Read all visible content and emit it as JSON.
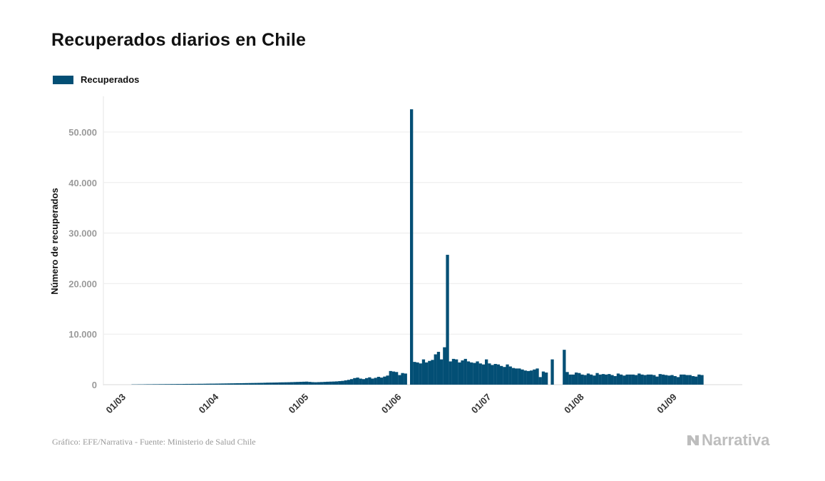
{
  "title": "Recuperados diarios en Chile",
  "legend": {
    "label": "Recuperados",
    "color": "#034f75"
  },
  "source": "Gráfico: EFE/Narrativa - Fuente: Ministerio de Salud Chile",
  "brand": "Narrativa",
  "chart_data": {
    "type": "bar",
    "ylabel": "Número de recuperados",
    "ylim": [
      0,
      55000
    ],
    "yticks": [
      0,
      10000,
      20000,
      30000,
      40000,
      50000
    ],
    "ytick_labels": [
      "0",
      "10.000",
      "20.000",
      "30.000",
      "40.000",
      "50.000"
    ],
    "x_start": "2020-03-01",
    "x_end": "2020-09-14",
    "xtick_dates": [
      "2020-03-01",
      "2020-04-01",
      "2020-05-01",
      "2020-06-01",
      "2020-07-01",
      "2020-08-01",
      "2020-09-01"
    ],
    "xtick_labels": [
      "01/03",
      "01/04",
      "01/05",
      "01/06",
      "01/07",
      "01/08",
      "01/09"
    ],
    "grid": true,
    "legend_position": "top-left",
    "series": [
      {
        "name": "Recuperados",
        "color": "#034f75",
        "data": [
          [
            "2020-03-08",
            50
          ],
          [
            "2020-03-09",
            50
          ],
          [
            "2020-03-10",
            60
          ],
          [
            "2020-03-11",
            60
          ],
          [
            "2020-03-12",
            70
          ],
          [
            "2020-03-13",
            80
          ],
          [
            "2020-03-14",
            80
          ],
          [
            "2020-03-15",
            90
          ],
          [
            "2020-03-16",
            90
          ],
          [
            "2020-03-17",
            100
          ],
          [
            "2020-03-18",
            100
          ],
          [
            "2020-03-19",
            110
          ],
          [
            "2020-03-20",
            110
          ],
          [
            "2020-03-21",
            120
          ],
          [
            "2020-03-22",
            120
          ],
          [
            "2020-03-23",
            130
          ],
          [
            "2020-03-24",
            130
          ],
          [
            "2020-03-25",
            140
          ],
          [
            "2020-03-26",
            150
          ],
          [
            "2020-03-27",
            150
          ],
          [
            "2020-03-28",
            160
          ],
          [
            "2020-03-29",
            160
          ],
          [
            "2020-03-30",
            170
          ],
          [
            "2020-03-31",
            170
          ],
          [
            "2020-04-01",
            180
          ],
          [
            "2020-04-02",
            190
          ],
          [
            "2020-04-03",
            200
          ],
          [
            "2020-04-04",
            200
          ],
          [
            "2020-04-05",
            210
          ],
          [
            "2020-04-06",
            220
          ],
          [
            "2020-04-07",
            230
          ],
          [
            "2020-04-08",
            240
          ],
          [
            "2020-04-09",
            250
          ],
          [
            "2020-04-10",
            260
          ],
          [
            "2020-04-11",
            270
          ],
          [
            "2020-04-12",
            280
          ],
          [
            "2020-04-13",
            290
          ],
          [
            "2020-04-14",
            300
          ],
          [
            "2020-04-15",
            310
          ],
          [
            "2020-04-16",
            320
          ],
          [
            "2020-04-17",
            330
          ],
          [
            "2020-04-18",
            340
          ],
          [
            "2020-04-19",
            350
          ],
          [
            "2020-04-20",
            360
          ],
          [
            "2020-04-21",
            380
          ],
          [
            "2020-04-22",
            400
          ],
          [
            "2020-04-23",
            410
          ],
          [
            "2020-04-24",
            420
          ],
          [
            "2020-04-25",
            430
          ],
          [
            "2020-04-26",
            450
          ],
          [
            "2020-04-27",
            460
          ],
          [
            "2020-04-28",
            470
          ],
          [
            "2020-04-29",
            480
          ],
          [
            "2020-04-30",
            500
          ],
          [
            "2020-05-01",
            520
          ],
          [
            "2020-05-02",
            540
          ],
          [
            "2020-05-03",
            560
          ],
          [
            "2020-05-04",
            580
          ],
          [
            "2020-05-05",
            600
          ],
          [
            "2020-05-06",
            550
          ],
          [
            "2020-05-07",
            500
          ],
          [
            "2020-05-08",
            480
          ],
          [
            "2020-05-09",
            500
          ],
          [
            "2020-05-10",
            520
          ],
          [
            "2020-05-11",
            550
          ],
          [
            "2020-05-12",
            580
          ],
          [
            "2020-05-13",
            600
          ],
          [
            "2020-05-14",
            620
          ],
          [
            "2020-05-15",
            650
          ],
          [
            "2020-05-16",
            700
          ],
          [
            "2020-05-17",
            750
          ],
          [
            "2020-05-18",
            850
          ],
          [
            "2020-05-19",
            950
          ],
          [
            "2020-05-20",
            1100
          ],
          [
            "2020-05-21",
            1300
          ],
          [
            "2020-05-22",
            1400
          ],
          [
            "2020-05-23",
            1200
          ],
          [
            "2020-05-24",
            1100
          ],
          [
            "2020-05-25",
            1300
          ],
          [
            "2020-05-26",
            1450
          ],
          [
            "2020-05-27",
            1200
          ],
          [
            "2020-05-28",
            1350
          ],
          [
            "2020-05-29",
            1550
          ],
          [
            "2020-05-30",
            1400
          ],
          [
            "2020-05-31",
            1600
          ],
          [
            "2020-06-01",
            1800
          ],
          [
            "2020-06-02",
            2700
          ],
          [
            "2020-06-03",
            2600
          ],
          [
            "2020-06-04",
            2500
          ],
          [
            "2020-06-05",
            1900
          ],
          [
            "2020-06-06",
            2300
          ],
          [
            "2020-06-07",
            2200
          ],
          [
            "2020-06-09",
            54500
          ],
          [
            "2020-06-10",
            4500
          ],
          [
            "2020-06-11",
            4400
          ],
          [
            "2020-06-12",
            4200
          ],
          [
            "2020-06-13",
            5000
          ],
          [
            "2020-06-14",
            4400
          ],
          [
            "2020-06-15",
            4700
          ],
          [
            "2020-06-16",
            4900
          ],
          [
            "2020-06-17",
            6000
          ],
          [
            "2020-06-18",
            6500
          ],
          [
            "2020-06-19",
            5000
          ],
          [
            "2020-06-20",
            7400
          ],
          [
            "2020-06-21",
            25700
          ],
          [
            "2020-06-22",
            4600
          ],
          [
            "2020-06-23",
            5100
          ],
          [
            "2020-06-24",
            5000
          ],
          [
            "2020-06-25",
            4400
          ],
          [
            "2020-06-26",
            4800
          ],
          [
            "2020-06-27",
            5100
          ],
          [
            "2020-06-28",
            4600
          ],
          [
            "2020-06-29",
            4400
          ],
          [
            "2020-06-30",
            4300
          ],
          [
            "2020-07-01",
            4600
          ],
          [
            "2020-07-02",
            4200
          ],
          [
            "2020-07-03",
            4000
          ],
          [
            "2020-07-04",
            5000
          ],
          [
            "2020-07-05",
            4200
          ],
          [
            "2020-07-06",
            3900
          ],
          [
            "2020-07-07",
            4100
          ],
          [
            "2020-07-08",
            4000
          ],
          [
            "2020-07-09",
            3700
          ],
          [
            "2020-07-10",
            3500
          ],
          [
            "2020-07-11",
            4000
          ],
          [
            "2020-07-12",
            3600
          ],
          [
            "2020-07-13",
            3300
          ],
          [
            "2020-07-14",
            3200
          ],
          [
            "2020-07-15",
            3200
          ],
          [
            "2020-07-16",
            3000
          ],
          [
            "2020-07-17",
            2800
          ],
          [
            "2020-07-18",
            2700
          ],
          [
            "2020-07-19",
            2800
          ],
          [
            "2020-07-20",
            3000
          ],
          [
            "2020-07-21",
            3200
          ],
          [
            "2020-07-22",
            1500
          ],
          [
            "2020-07-23",
            2600
          ],
          [
            "2020-07-24",
            2400
          ],
          [
            "2020-07-26",
            5000
          ],
          [
            "2020-07-30",
            6900
          ],
          [
            "2020-07-31",
            2500
          ],
          [
            "2020-08-01",
            2000
          ],
          [
            "2020-08-02",
            2000
          ],
          [
            "2020-08-03",
            2400
          ],
          [
            "2020-08-04",
            2300
          ],
          [
            "2020-08-05",
            2000
          ],
          [
            "2020-08-06",
            1900
          ],
          [
            "2020-08-07",
            2200
          ],
          [
            "2020-08-08",
            2000
          ],
          [
            "2020-08-09",
            1800
          ],
          [
            "2020-08-10",
            2300
          ],
          [
            "2020-08-11",
            2000
          ],
          [
            "2020-08-12",
            2100
          ],
          [
            "2020-08-13",
            2000
          ],
          [
            "2020-08-14",
            2100
          ],
          [
            "2020-08-15",
            1900
          ],
          [
            "2020-08-16",
            1700
          ],
          [
            "2020-08-17",
            2200
          ],
          [
            "2020-08-18",
            2000
          ],
          [
            "2020-08-19",
            1800
          ],
          [
            "2020-08-20",
            2000
          ],
          [
            "2020-08-21",
            2000
          ],
          [
            "2020-08-22",
            2000
          ],
          [
            "2020-08-23",
            1900
          ],
          [
            "2020-08-24",
            2200
          ],
          [
            "2020-08-25",
            2000
          ],
          [
            "2020-08-26",
            1900
          ],
          [
            "2020-08-27",
            2000
          ],
          [
            "2020-08-28",
            2000
          ],
          [
            "2020-08-29",
            1900
          ],
          [
            "2020-08-30",
            1600
          ],
          [
            "2020-08-31",
            2100
          ],
          [
            "2020-09-01",
            2000
          ],
          [
            "2020-09-02",
            1900
          ],
          [
            "2020-09-03",
            1800
          ],
          [
            "2020-09-04",
            1900
          ],
          [
            "2020-09-05",
            1700
          ],
          [
            "2020-09-06",
            1500
          ],
          [
            "2020-09-07",
            2000
          ],
          [
            "2020-09-08",
            2000
          ],
          [
            "2020-09-09",
            1900
          ],
          [
            "2020-09-10",
            1900
          ],
          [
            "2020-09-11",
            1700
          ],
          [
            "2020-09-12",
            1600
          ],
          [
            "2020-09-13",
            2000
          ],
          [
            "2020-09-14",
            1900
          ]
        ]
      }
    ]
  }
}
